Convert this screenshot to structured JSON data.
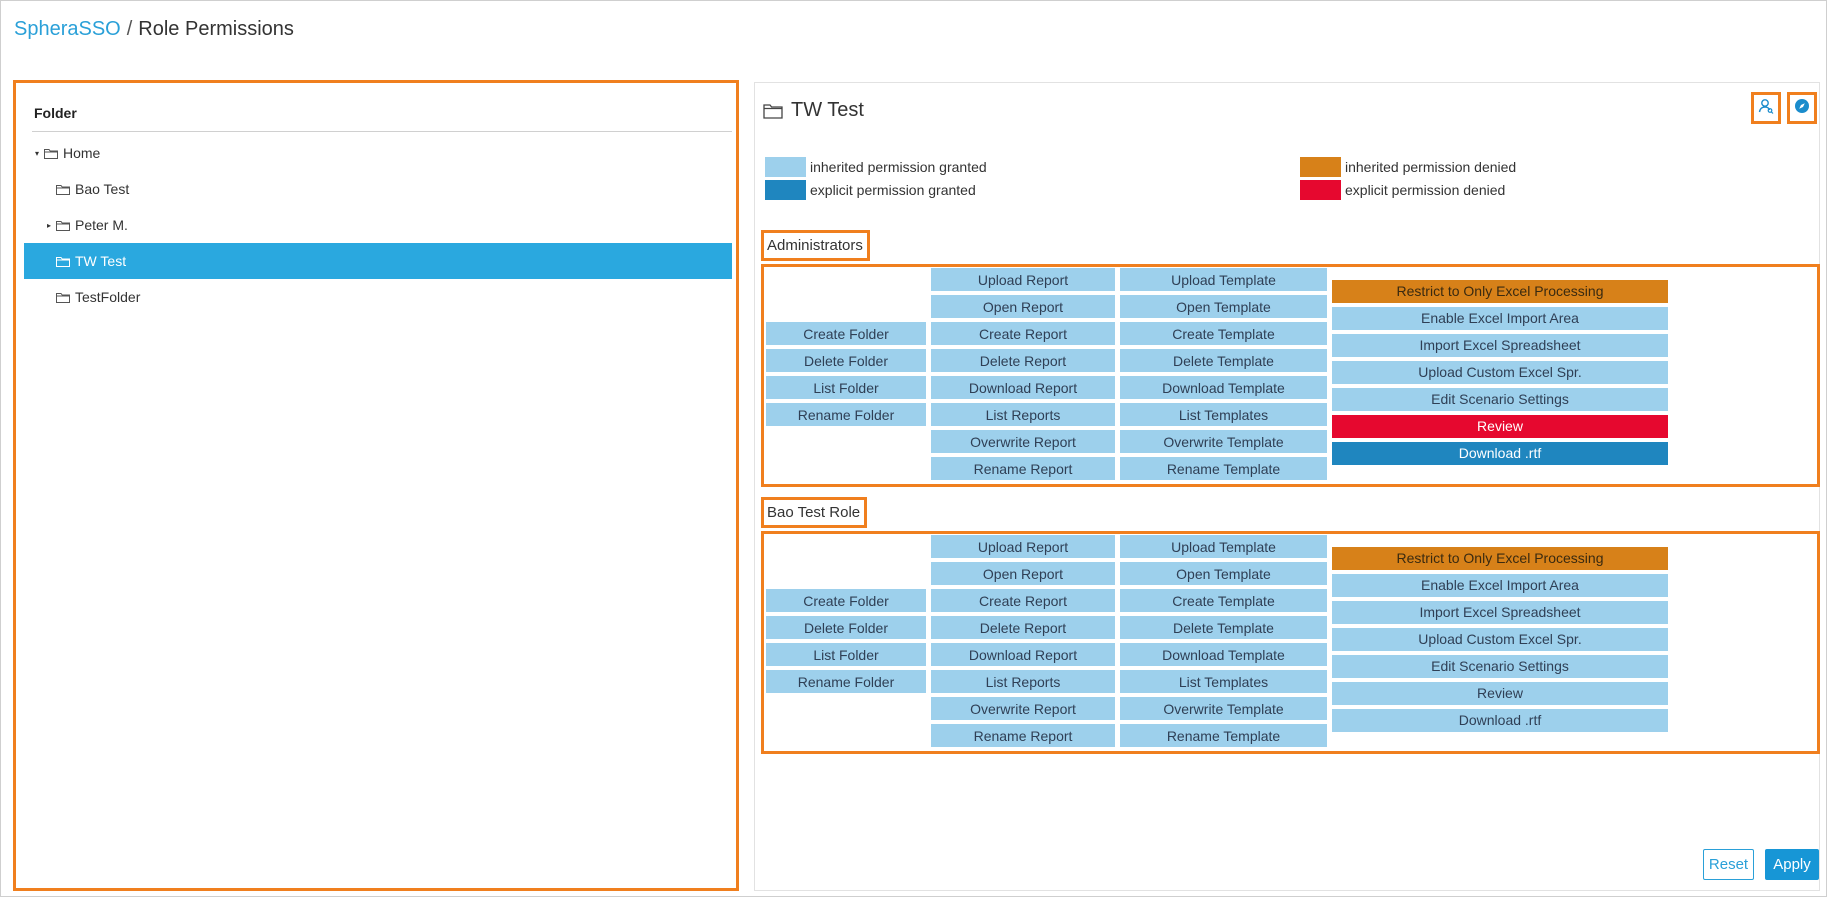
{
  "breadcrumb": {
    "root": "SpheraSSO",
    "separator": "/",
    "current": "Role Permissions"
  },
  "folder_panel": {
    "header": "Folder",
    "tree": [
      {
        "label": "Home",
        "caret": "▾",
        "icon": "folder-icon"
      },
      {
        "label": "Bao Test",
        "caret": "",
        "icon": "folder-icon"
      },
      {
        "label": "Peter M.",
        "caret": "▸",
        "icon": "folder-icon"
      },
      {
        "label": "TW Test",
        "caret": "",
        "icon": "folder-icon",
        "selected": true
      },
      {
        "label": "TestFolder",
        "caret": "",
        "icon": "folder-icon"
      }
    ]
  },
  "detail": {
    "title": "TW Test",
    "title_icon": "folder-icon",
    "action_icons": [
      "user-search-icon",
      "compass-icon"
    ],
    "legend": [
      {
        "label": "inherited permission granted",
        "color": "#9dd0ec"
      },
      {
        "label": "explicit permission granted",
        "color": "#1f86bf"
      },
      {
        "label": "inherited permission denied",
        "color": "#d78119"
      },
      {
        "label": "explicit permission denied",
        "color": "#e6082f"
      }
    ],
    "roles": [
      {
        "name": "Administrators",
        "folder_perms": [
          {
            "label": "Create Folder",
            "state": "ig"
          },
          {
            "label": "Delete Folder",
            "state": "ig"
          },
          {
            "label": "List Folder",
            "state": "ig"
          },
          {
            "label": "Rename Folder",
            "state": "ig"
          }
        ],
        "report_perms": [
          {
            "label": "Upload Report",
            "state": "ig"
          },
          {
            "label": "Open Report",
            "state": "ig"
          },
          {
            "label": "Create Report",
            "state": "ig"
          },
          {
            "label": "Delete Report",
            "state": "ig"
          },
          {
            "label": "Download Report",
            "state": "ig"
          },
          {
            "label": "List Reports",
            "state": "ig"
          },
          {
            "label": "Overwrite Report",
            "state": "ig"
          },
          {
            "label": "Rename Report",
            "state": "ig"
          }
        ],
        "template_perms": [
          {
            "label": "Upload Template",
            "state": "ig"
          },
          {
            "label": "Open Template",
            "state": "ig"
          },
          {
            "label": "Create Template",
            "state": "ig"
          },
          {
            "label": "Delete Template",
            "state": "ig"
          },
          {
            "label": "Download Template",
            "state": "ig"
          },
          {
            "label": "List Templates",
            "state": "ig"
          },
          {
            "label": "Overwrite Template",
            "state": "ig"
          },
          {
            "label": "Rename Template",
            "state": "ig"
          }
        ],
        "excel_perms": [
          {
            "label": "Restrict to Only Excel Processing",
            "state": "id"
          },
          {
            "label": "Enable Excel Import Area",
            "state": "ig"
          },
          {
            "label": "Import Excel Spreadsheet",
            "state": "ig"
          },
          {
            "label": "Upload Custom Excel Spr.",
            "state": "ig"
          },
          {
            "label": "Edit Scenario Settings",
            "state": "ig"
          },
          {
            "label": "Review",
            "state": "xd"
          },
          {
            "label": "Download .rtf",
            "state": "xg"
          }
        ]
      },
      {
        "name": "Bao Test Role",
        "folder_perms": [
          {
            "label": "Create Folder",
            "state": "ig"
          },
          {
            "label": "Delete Folder",
            "state": "ig"
          },
          {
            "label": "List Folder",
            "state": "ig"
          },
          {
            "label": "Rename Folder",
            "state": "ig"
          }
        ],
        "report_perms": [
          {
            "label": "Upload Report",
            "state": "ig"
          },
          {
            "label": "Open Report",
            "state": "ig"
          },
          {
            "label": "Create Report",
            "state": "ig"
          },
          {
            "label": "Delete Report",
            "state": "ig"
          },
          {
            "label": "Download Report",
            "state": "ig"
          },
          {
            "label": "List Reports",
            "state": "ig"
          },
          {
            "label": "Overwrite Report",
            "state": "ig"
          },
          {
            "label": "Rename Report",
            "state": "ig"
          }
        ],
        "template_perms": [
          {
            "label": "Upload Template",
            "state": "ig"
          },
          {
            "label": "Open Template",
            "state": "ig"
          },
          {
            "label": "Create Template",
            "state": "ig"
          },
          {
            "label": "Delete Template",
            "state": "ig"
          },
          {
            "label": "Download Template",
            "state": "ig"
          },
          {
            "label": "List Templates",
            "state": "ig"
          },
          {
            "label": "Overwrite Template",
            "state": "ig"
          },
          {
            "label": "Rename Template",
            "state": "ig"
          }
        ],
        "excel_perms": [
          {
            "label": "Restrict to Only Excel Processing",
            "state": "id"
          },
          {
            "label": "Enable Excel Import Area",
            "state": "ig"
          },
          {
            "label": "Import Excel Spreadsheet",
            "state": "ig"
          },
          {
            "label": "Upload Custom Excel Spr.",
            "state": "ig"
          },
          {
            "label": "Edit Scenario Settings",
            "state": "ig"
          },
          {
            "label": "Review",
            "state": "ig"
          },
          {
            "label": "Download .rtf",
            "state": "ig"
          }
        ]
      }
    ],
    "buttons": {
      "reset": "Reset",
      "apply": "Apply"
    }
  }
}
